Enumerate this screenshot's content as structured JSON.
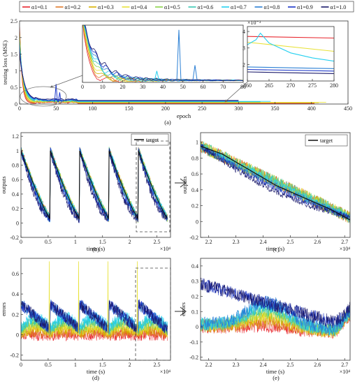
{
  "legend": {
    "entries": [
      "α1=0.1",
      "α1=0.2",
      "α1=0.3",
      "α1=0.4",
      "α1=0.5",
      "α1=0.6",
      "α1=0.7",
      "α1=0.8",
      "α1=0.9",
      "α1=1.0"
    ],
    "colors": [
      "#e8262d",
      "#e07a2a",
      "#d8b000",
      "#e8e23a",
      "#8ad44a",
      "#3ac7b3",
      "#25d0f0",
      "#2a7fd4",
      "#1a35c8",
      "#1b1a6b"
    ]
  },
  "chart_data": [
    {
      "panel": "(a)",
      "type": "line",
      "xlabel": "epoch",
      "ylabel": "testing loss (MSE)",
      "xlim": [
        0,
        450
      ],
      "ylim": [
        0,
        2.5
      ],
      "xticks": [
        "0",
        "50",
        "100",
        "150",
        "200",
        "250",
        "300",
        "350",
        "400",
        "450"
      ],
      "yticks": [
        "0",
        "0.5",
        "1",
        "1.5",
        "2",
        "2.5"
      ],
      "curve_ends": [
        405,
        405,
        410,
        420,
        330,
        330,
        345,
        300,
        300,
        300
      ],
      "spikes": [
        {
          "x": 50,
          "y": 0.6
        },
        {
          "x": 55,
          "y": 0.35
        }
      ]
    },
    {
      "panel": "(a) inset left",
      "type": "line",
      "xlim": [
        0,
        80
      ],
      "ylim": [
        0,
        0.6
      ],
      "xticks": [
        "0",
        "10",
        "20",
        "30",
        "40",
        "50",
        "60",
        "70",
        "80"
      ],
      "spikes": [
        {
          "x": 48,
          "y": 0.55
        },
        {
          "x": 37,
          "y": 0.12
        },
        {
          "x": 56,
          "y": 0.18
        }
      ]
    },
    {
      "panel": "(a) inset right",
      "type": "line",
      "xlim": [
        260,
        280
      ],
      "ylim": [
        1,
        4.3
      ],
      "xticks": [
        "260",
        "265",
        "270",
        "275",
        "280"
      ],
      "yticks": [
        "2",
        "3",
        "4"
      ],
      "y_multiplier": "×10⁻³",
      "series": [
        {
          "name": "α1=0.1",
          "x": [
            260,
            280
          ],
          "y": [
            3.7,
            3.6
          ]
        },
        {
          "name": "α1=0.4",
          "x": [
            260,
            280
          ],
          "y": [
            3.35,
            2.8
          ]
        },
        {
          "name": "α1=0.7",
          "x": [
            260,
            262,
            263,
            265,
            270,
            275,
            280
          ],
          "y": [
            3.2,
            3.5,
            3.9,
            3.3,
            2.7,
            2.4,
            2.2
          ]
        },
        {
          "name": "α1=0.8",
          "x": [
            260,
            280
          ],
          "y": [
            1.85,
            1.75
          ]
        },
        {
          "name": "α1=0.9",
          "x": [
            260,
            280
          ],
          "y": [
            1.7,
            1.6
          ]
        },
        {
          "name": "α1=1.0",
          "x": [
            260,
            280
          ],
          "y": [
            1.55,
            1.45
          ]
        }
      ]
    },
    {
      "panel": "(b)",
      "type": "line",
      "xlabel": "time (s)",
      "ylabel": "outputs",
      "x_multiplier": "×10⁴",
      "xlim": [
        0,
        2.75
      ],
      "ylim": [
        -0.2,
        1.25
      ],
      "xticks": [
        "0",
        "0.5",
        "1",
        "1.5",
        "2",
        "2.5"
      ],
      "yticks": [
        "-0.2",
        "0",
        "0.2",
        "0.4",
        "0.6",
        "0.8",
        "1",
        "1.2"
      ],
      "legend_label": "target",
      "cycle_starts": [
        0,
        0.54,
        1.08,
        1.62,
        2.16
      ],
      "cycle_length": 0.54,
      "target_y_start": 1.0,
      "target_y_end": 0.05
    },
    {
      "panel": "(c)",
      "type": "line",
      "xlabel": "time (s)",
      "ylabel": "outputs",
      "x_multiplier": "×10⁴",
      "xlim": [
        2.17,
        2.72
      ],
      "ylim": [
        -0.2,
        1.12
      ],
      "xticks": [
        "2.2",
        "2.3",
        "2.4",
        "2.5",
        "2.6",
        "2.7"
      ],
      "yticks": [
        "-0.2",
        "0",
        "0.2",
        "0.4",
        "0.6",
        "0.8",
        "1"
      ],
      "legend_label": "target",
      "target": {
        "x": [
          2.17,
          2.25,
          2.35,
          2.45,
          2.55,
          2.65,
          2.72
        ],
        "y": [
          0.95,
          0.85,
          0.65,
          0.45,
          0.3,
          0.15,
          0.02
        ]
      }
    },
    {
      "panel": "(d)",
      "type": "line",
      "xlabel": "time (s)",
      "ylabel": "errors",
      "x_multiplier": "×10⁴",
      "xlim": [
        0,
        2.75
      ],
      "ylim": [
        -0.25,
        0.75
      ],
      "xticks": [
        "0",
        "0.5",
        "1",
        "1.5",
        "2",
        "2.5"
      ],
      "yticks": [
        "-0.2",
        "0",
        "0.2",
        "0.4",
        "0.6"
      ],
      "spike_x": [
        0.52,
        1.06,
        1.6,
        2.14
      ]
    },
    {
      "panel": "(e)",
      "type": "line",
      "xlabel": "time (s)",
      "ylabel": "errors",
      "x_multiplier": "×10⁴",
      "xlim": [
        2.17,
        2.72
      ],
      "ylim": [
        -0.22,
        0.45
      ],
      "xticks": [
        "2.2",
        "2.3",
        "2.4",
        "2.5",
        "2.6",
        "2.7"
      ],
      "yticks": [
        "-0.2",
        "-0.1",
        "0",
        "0.1",
        "0.2",
        "0.3",
        "0.4"
      ]
    }
  ],
  "panel_labels": [
    "(a)",
    "(b)",
    "(c)",
    "(d)",
    "(e)"
  ]
}
